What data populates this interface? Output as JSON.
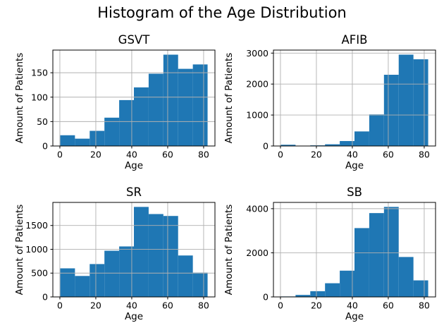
{
  "figure": {
    "suptitle": "Histogram of the Age Distribution",
    "background": "#ffffff"
  },
  "colors": {
    "bar": "#1f77b4",
    "grid": "#b0b0b0",
    "spine": "#000000",
    "text": "#000000"
  },
  "chart_data": [
    {
      "type": "bar",
      "subtype": "histogram",
      "title": "GSVT",
      "xlabel": "Age",
      "ylabel": "Amount of Patients",
      "bin_edges": [
        0.2,
        8.4,
        16.6,
        24.8,
        33.0,
        41.2,
        49.4,
        57.6,
        65.8,
        74.0,
        82.2
      ],
      "counts": [
        22,
        15,
        31,
        58,
        94,
        120,
        148,
        187,
        158,
        167
      ],
      "xticks": [
        0,
        20,
        40,
        60,
        80
      ],
      "yticks": [
        0,
        50,
        100,
        150
      ],
      "xlim": [
        -3.9,
        86.3
      ],
      "ylim": [
        0,
        196.4
      ],
      "grid": true,
      "legend": null
    },
    {
      "type": "bar",
      "subtype": "histogram",
      "title": "AFIB",
      "xlabel": "Age",
      "ylabel": "Amount of Patients",
      "bin_edges": [
        0.2,
        8.4,
        16.6,
        24.8,
        33.0,
        41.2,
        49.4,
        57.6,
        65.8,
        74.0,
        82.2
      ],
      "counts": [
        40,
        8,
        20,
        55,
        160,
        470,
        1020,
        2300,
        2950,
        2800
      ],
      "xticks": [
        0,
        20,
        40,
        60,
        80
      ],
      "yticks": [
        0,
        1000,
        2000,
        3000
      ],
      "xlim": [
        -3.9,
        86.3
      ],
      "ylim": [
        0,
        3097.5
      ],
      "grid": true,
      "legend": null
    },
    {
      "type": "bar",
      "subtype": "histogram",
      "title": "SR",
      "xlabel": "Age",
      "ylabel": "Amount of Patients",
      "bin_edges": [
        0.2,
        8.4,
        16.6,
        24.8,
        33.0,
        41.2,
        49.4,
        57.6,
        65.8,
        74.0,
        82.2
      ],
      "counts": [
        600,
        440,
        690,
        970,
        1060,
        1890,
        1740,
        1700,
        870,
        510
      ],
      "xticks": [
        0,
        20,
        40,
        60,
        80
      ],
      "yticks": [
        0,
        500,
        1000,
        1500
      ],
      "xlim": [
        -3.9,
        86.3
      ],
      "ylim": [
        0,
        1984.5
      ],
      "grid": true,
      "legend": null
    },
    {
      "type": "bar",
      "subtype": "histogram",
      "title": "SB",
      "xlabel": "Age",
      "ylabel": "Amount of Patients",
      "bin_edges": [
        0.2,
        8.4,
        16.6,
        24.8,
        33.0,
        41.2,
        49.4,
        57.6,
        65.8,
        74.0,
        82.2
      ],
      "counts": [
        20,
        90,
        260,
        620,
        1190,
        3120,
        3800,
        4080,
        1810,
        750
      ],
      "xticks": [
        0,
        20,
        40,
        60,
        80
      ],
      "yticks": [
        0,
        2000,
        4000
      ],
      "xlim": [
        -3.9,
        86.3
      ],
      "ylim": [
        0,
        4284
      ],
      "grid": true,
      "legend": null
    }
  ]
}
